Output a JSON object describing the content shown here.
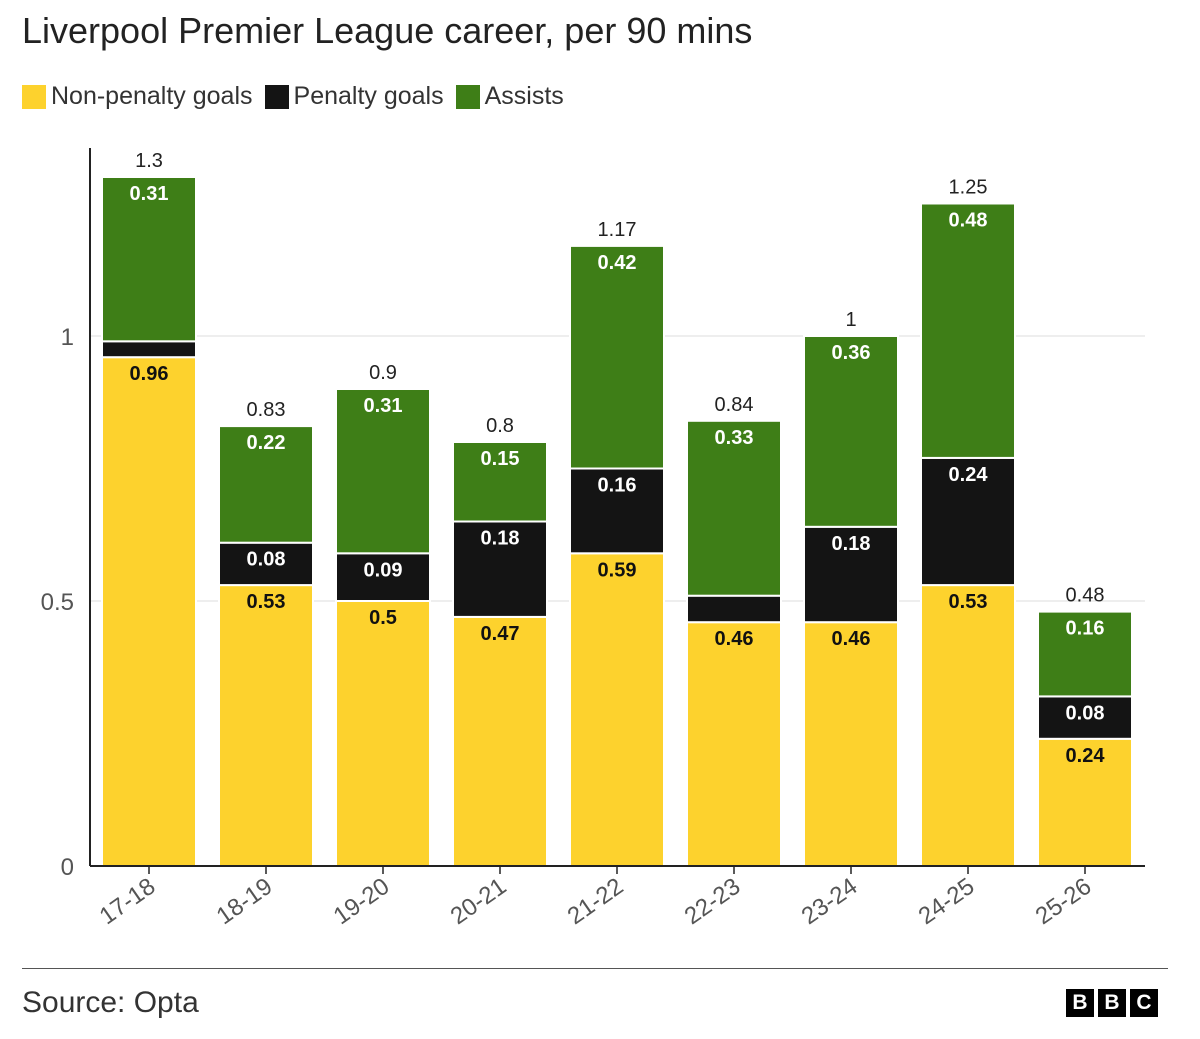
{
  "title": "Liverpool Premier League career, per 90 mins",
  "legend": [
    {
      "label": "Non-penalty goals",
      "color": "#FDD22D"
    },
    {
      "label": "Penalty goals",
      "color": "#141414"
    },
    {
      "label": "Assists",
      "color": "#3E7E17"
    }
  ],
  "source": "Source: Opta",
  "logo": [
    "B",
    "B",
    "C"
  ],
  "chart_data": {
    "type": "bar",
    "stacked": true,
    "title": "Liverpool Premier League career, per 90 mins",
    "xlabel": "",
    "ylabel": "",
    "ylim": [
      0,
      1.35
    ],
    "yticks": [
      0,
      0.5,
      1
    ],
    "ytick_labels": [
      "0",
      "0.5",
      "1"
    ],
    "grid": true,
    "categories": [
      "17-18",
      "18-19",
      "19-20",
      "20-21",
      "21-22",
      "22-23",
      "23-24",
      "24-25",
      "25-26"
    ],
    "totals": [
      1.3,
      0.83,
      0.9,
      0.8,
      1.17,
      0.84,
      1,
      1.25,
      0.48
    ],
    "series": [
      {
        "name": "Non-penalty goals",
        "color": "#FDD22D",
        "label_color": "#111111",
        "values": [
          0.96,
          0.53,
          0.5,
          0.47,
          0.59,
          0.46,
          0.46,
          0.53,
          0.24
        ],
        "labels": [
          "0.96",
          "0.53",
          "0.5",
          "0.47",
          "0.59",
          "0.46",
          "0.46",
          "0.53",
          "0.24"
        ]
      },
      {
        "name": "Penalty goals",
        "color": "#141414",
        "label_color": "#ffffff",
        "values": [
          0.03,
          0.08,
          0.09,
          0.18,
          0.16,
          0.05,
          0.18,
          0.24,
          0.08
        ],
        "labels": [
          "",
          "0.08",
          "0.09",
          "0.18",
          "0.16",
          "",
          "0.18",
          "0.24",
          "0.08"
        ]
      },
      {
        "name": "Assists",
        "color": "#3E7E17",
        "label_color": "#ffffff",
        "values": [
          0.31,
          0.22,
          0.31,
          0.15,
          0.42,
          0.33,
          0.36,
          0.48,
          0.16
        ],
        "labels": [
          "0.31",
          "0.22",
          "0.31",
          "0.15",
          "0.42",
          "0.33",
          "0.36",
          "0.48",
          "0.16"
        ]
      }
    ]
  }
}
